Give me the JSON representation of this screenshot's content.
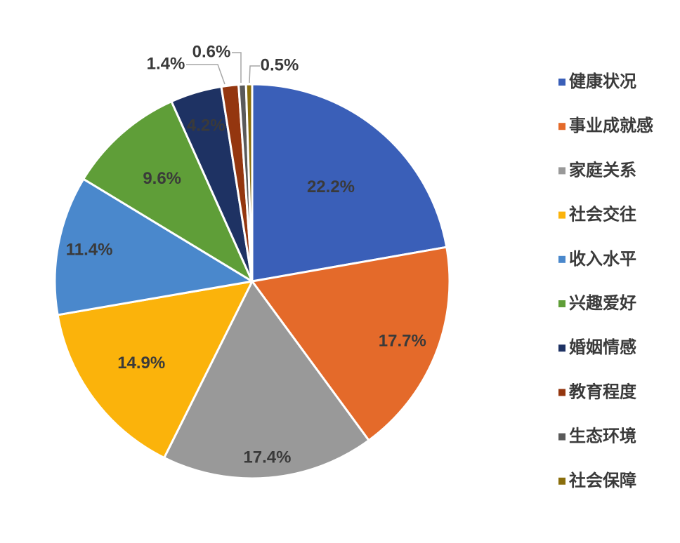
{
  "chart_data": {
    "type": "pie",
    "title": "",
    "legend_position": "right",
    "categories": [
      "健康状况",
      "事业成就感",
      "家庭关系",
      "社会交往",
      "收入水平",
      "兴趣爱好",
      "婚姻情感",
      "教育程度",
      "生态环境",
      "社会保障"
    ],
    "values": [
      22.2,
      17.7,
      17.4,
      14.9,
      11.4,
      9.6,
      4.2,
      1.4,
      0.6,
      0.5
    ],
    "labels": [
      "22.2%",
      "17.7%",
      "17.4%",
      "14.9%",
      "11.4%",
      "9.6%",
      "4.2%",
      "1.4%",
      "0.6%",
      "0.5%"
    ],
    "colors": [
      "#3a5fb8",
      "#e46a2a",
      "#999999",
      "#fbb30b",
      "#4a88cc",
      "#5f9e38",
      "#1e3263",
      "#94360f",
      "#5a5a5a",
      "#8a6e0c"
    ]
  }
}
